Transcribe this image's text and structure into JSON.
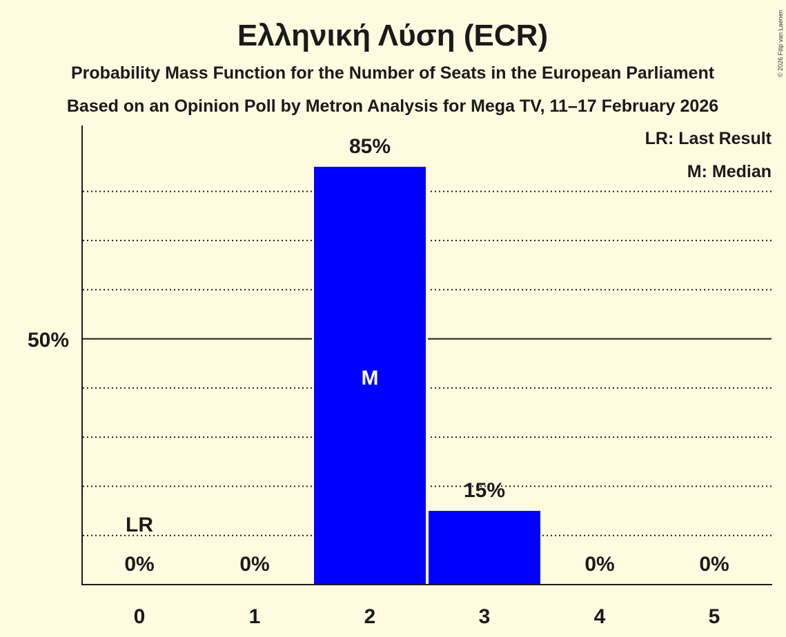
{
  "header": {
    "title": "Ελληνική Λύση (ECR)",
    "subtitle": "Probability Mass Function for the Number of Seats in the European Parliament",
    "source": "Based on an Opinion Poll by Metron Analysis for Mega TV, 11–17 February 2026",
    "copyright": "© 2026 Filip van Laenen"
  },
  "legend": {
    "lr": "LR: Last Result",
    "m": "M: Median"
  },
  "axis": {
    "y_tick_50": "50%"
  },
  "colors": {
    "background": "#fffbe0",
    "bar": "#0000ff",
    "text": "#1a1a1a"
  },
  "chart_data": {
    "type": "bar",
    "title": "Ελληνική Λύση (ECR)",
    "subtitle": "Probability Mass Function for the Number of Seats in the European Parliament",
    "xlabel": "",
    "ylabel": "",
    "categories": [
      "0",
      "1",
      "2",
      "3",
      "4",
      "5"
    ],
    "values": [
      0,
      0,
      85,
      15,
      0,
      0
    ],
    "value_labels": [
      "0%",
      "0%",
      "85%",
      "15%",
      "0%",
      "0%"
    ],
    "ylim": [
      0,
      93
    ],
    "y_ticks_labeled": [
      "50%"
    ],
    "gridlines": "dotted every 10%, solid at 50%",
    "annotations": [
      {
        "category": "0",
        "label": "LR",
        "meaning": "Last Result"
      },
      {
        "category": "2",
        "label": "M",
        "meaning": "Median"
      }
    ],
    "legend": [
      "LR: Last Result",
      "M: Median"
    ],
    "legend_position": "top-right"
  }
}
